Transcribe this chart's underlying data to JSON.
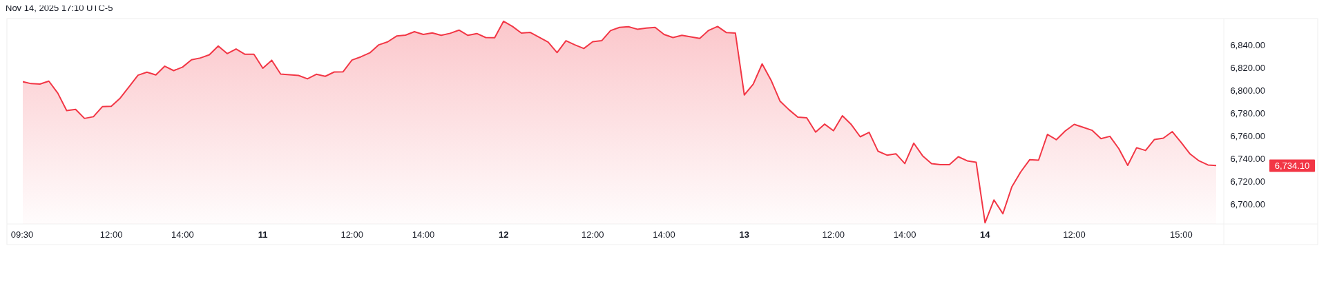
{
  "chart_data": {
    "type": "area",
    "annotations": [
      "Nov 14, 2025 17:10 UTC-5",
      "6,734.10"
    ],
    "categories": [
      "09:30",
      null,
      null,
      null,
      null,
      null,
      null,
      null,
      null,
      null,
      "12:00",
      null,
      null,
      null,
      null,
      null,
      null,
      null,
      "14:00",
      null,
      null,
      null,
      null,
      null,
      null,
      null,
      null,
      "11",
      null,
      null,
      null,
      null,
      null,
      null,
      null,
      null,
      null,
      "12:00",
      null,
      null,
      null,
      null,
      null,
      null,
      null,
      "14:00",
      null,
      null,
      null,
      null,
      null,
      null,
      null,
      null,
      "12",
      null,
      null,
      null,
      null,
      null,
      null,
      null,
      null,
      null,
      "12:00",
      null,
      null,
      null,
      null,
      null,
      null,
      null,
      "14:00",
      null,
      null,
      null,
      null,
      null,
      null,
      null,
      null,
      "13",
      null,
      null,
      null,
      null,
      null,
      null,
      null,
      null,
      null,
      "12:00",
      null,
      null,
      null,
      null,
      null,
      null,
      null,
      "14:00",
      null,
      null,
      null,
      null,
      null,
      null,
      null,
      null,
      "14",
      null,
      null,
      null,
      null,
      null,
      null,
      null,
      null,
      null,
      "12:00",
      null,
      null,
      null,
      null,
      null,
      null,
      null,
      null,
      null,
      null,
      null,
      "15:00",
      null,
      null,
      null,
      null
    ],
    "series": [
      {
        "color": "#f23645",
        "values": [
          6807.8,
          6806,
          6805.6,
          6808.2,
          6797.7,
          6782.4,
          6783.4,
          6775.5,
          6777,
          6785.8,
          6786.2,
          6793.3,
          6803.3,
          6813.4,
          6816,
          6813.6,
          6821.3,
          6817.4,
          6820.5,
          6826.9,
          6828.5,
          6831.3,
          6839,
          6832.3,
          6836.4,
          6831.7,
          6831.7,
          6819.5,
          6826.5,
          6814.4,
          6813.8,
          6813.2,
          6810.2,
          6814.2,
          6812.4,
          6816.2,
          6816.4,
          6826.7,
          6829.5,
          6833,
          6840,
          6842.6,
          6847.7,
          6848.5,
          6851.5,
          6849.1,
          6850.5,
          6848.3,
          6850.1,
          6852.9,
          6848.3,
          6849.9,
          6846.4,
          6846.2,
          6860.7,
          6856.1,
          6850.3,
          6850.9,
          6846.6,
          6842.4,
          6833.2,
          6843.6,
          6840,
          6836.8,
          6842.8,
          6843.6,
          6852.5,
          6855.3,
          6855.9,
          6853.7,
          6854.7,
          6855.3,
          6849.1,
          6846.4,
          6848.3,
          6847,
          6845.6,
          6852.7,
          6856.1,
          6850.7,
          6850.3,
          6796.1,
          6805.6,
          6823.3,
          6809,
          6790.7,
          6783.2,
          6776.6,
          6776,
          6763.5,
          6770.5,
          6764.7,
          6777.8,
          6770.1,
          6759.4,
          6763.3,
          6746.7,
          6743.3,
          6744.5,
          6735.9,
          6753.8,
          6742.7,
          6735.9,
          6734.9,
          6734.9,
          6741.9,
          6738.3,
          6737.1,
          6684,
          6704,
          6692,
          6715.5,
          6728.6,
          6739.3,
          6738.9,
          6761.5,
          6756.8,
          6764.5,
          6770.3,
          6767.7,
          6765.1,
          6757.8,
          6759.8,
          6749,
          6734.3,
          6749.8,
          6747.4,
          6757,
          6758.2,
          6763.9,
          6754.4,
          6744.3,
          6738.3,
          6734.7,
          6734.1
        ]
      }
    ],
    "ylim": [
      6683,
      6863
    ],
    "yticks": [
      {
        "value": 6700,
        "label": "6,700.00"
      },
      {
        "value": 6720,
        "label": "6,720.00"
      },
      {
        "value": 6740,
        "label": "6,740.00"
      },
      {
        "value": 6760,
        "label": "6,760.00"
      },
      {
        "value": 6780,
        "label": "6,780.00"
      },
      {
        "value": 6800,
        "label": "6,800.00"
      },
      {
        "value": 6820,
        "label": "6,820.00"
      },
      {
        "value": 6840,
        "label": "6,840.00"
      }
    ]
  }
}
